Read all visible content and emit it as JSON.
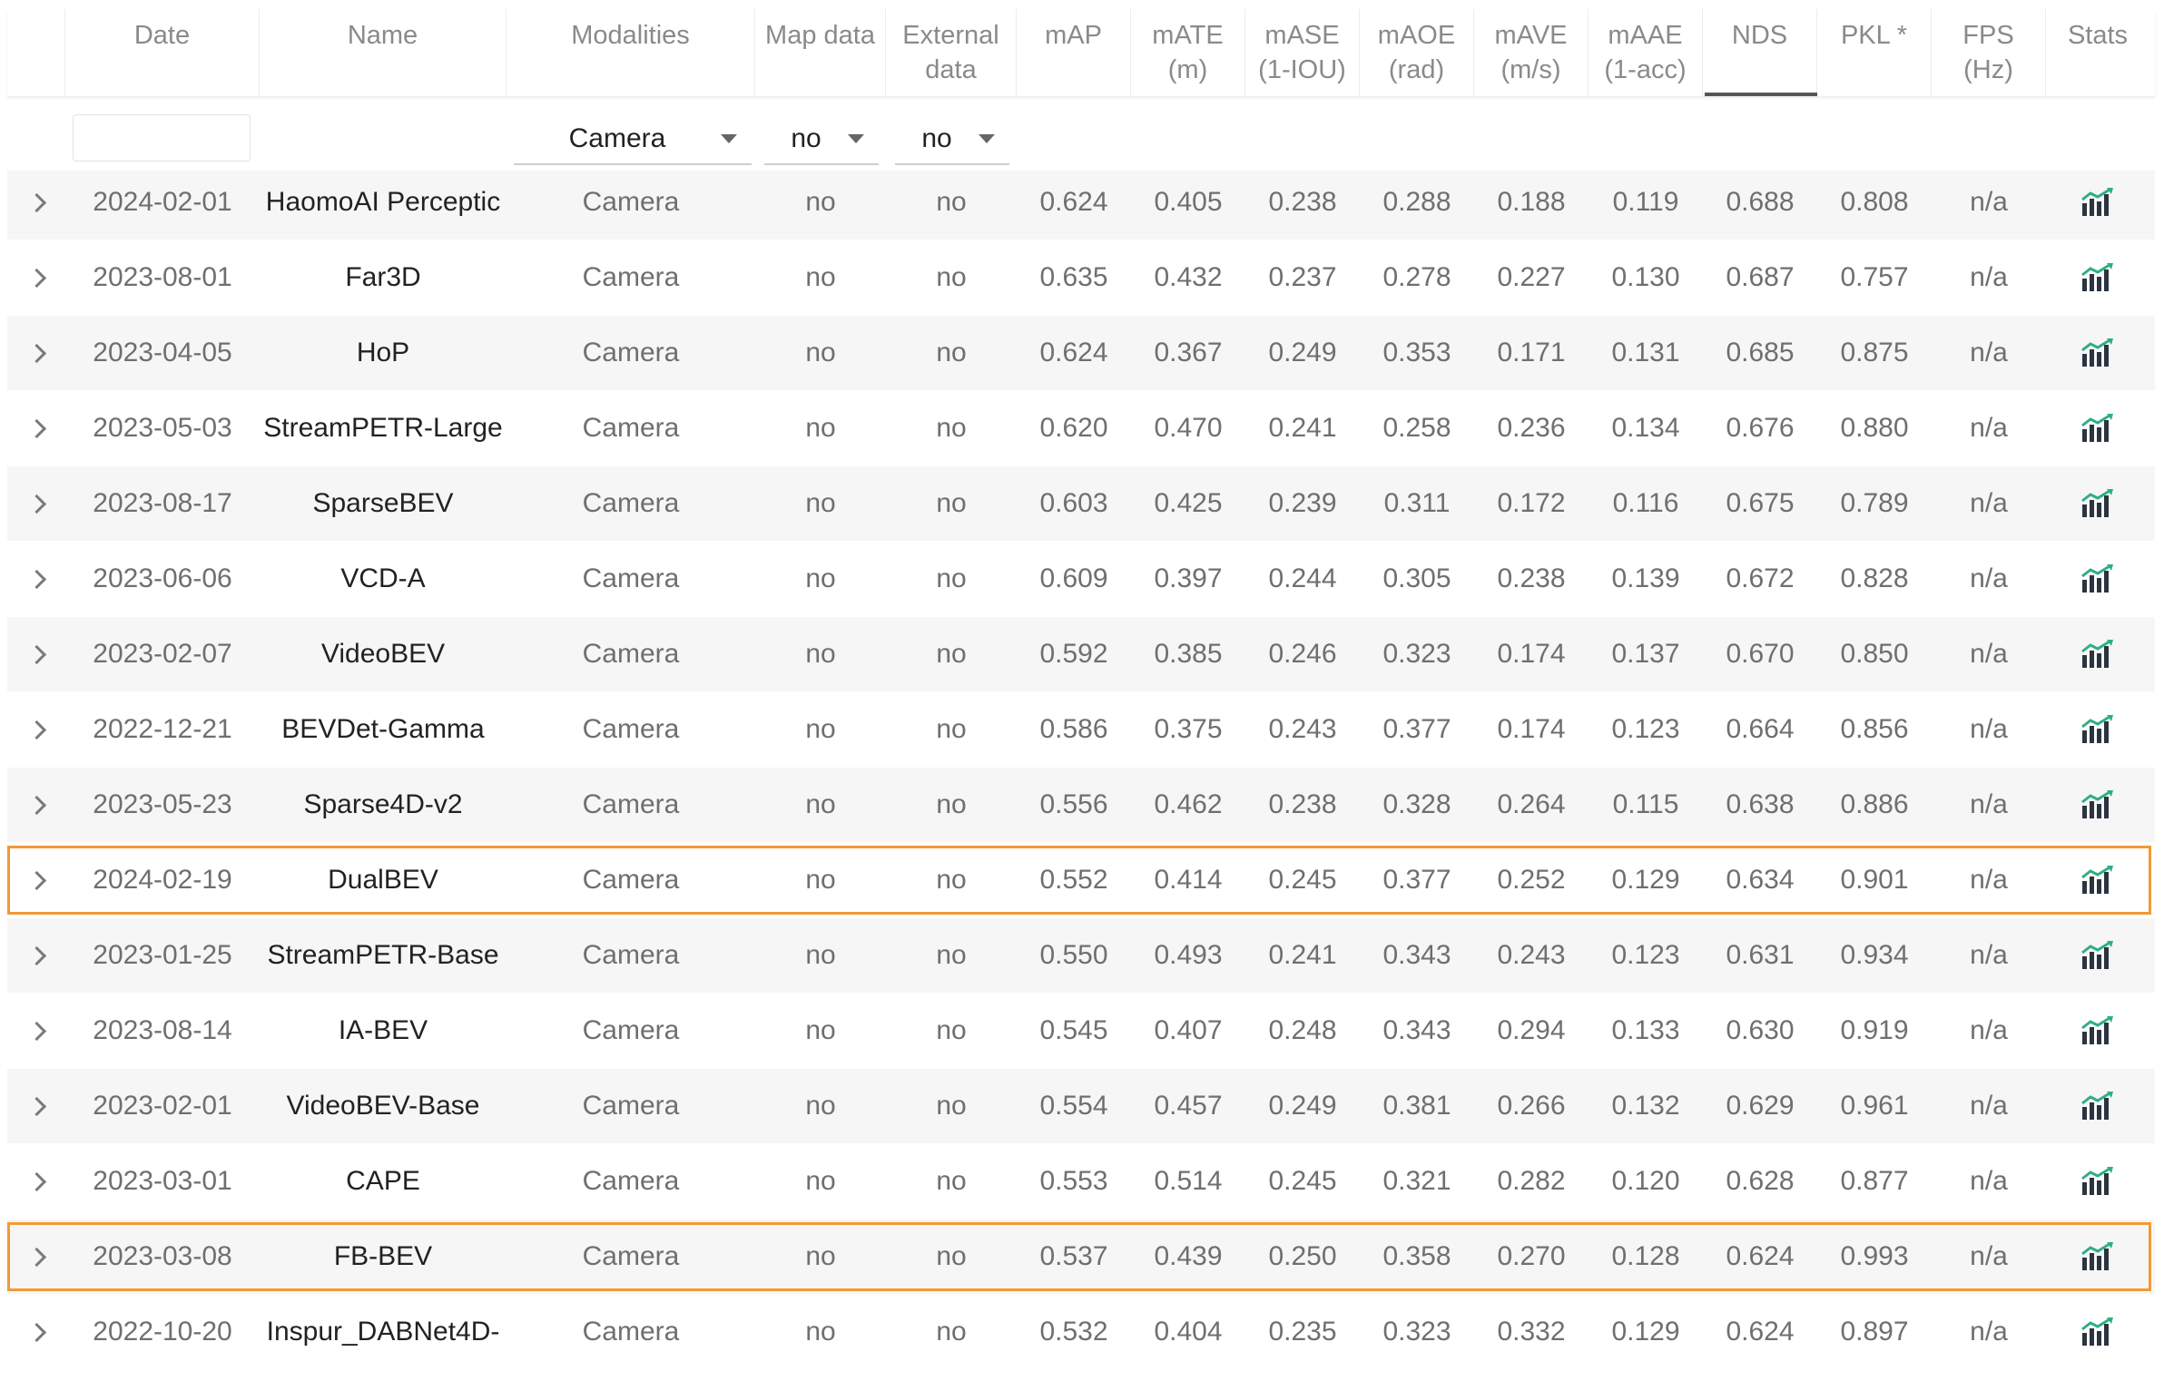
{
  "columns": [
    {
      "key": "expand",
      "label": ""
    },
    {
      "key": "date",
      "label": "Date"
    },
    {
      "key": "name",
      "label": "Name"
    },
    {
      "key": "modalities",
      "label": "Modalities"
    },
    {
      "key": "map",
      "label": "Map data"
    },
    {
      "key": "external",
      "label": "External data"
    },
    {
      "key": "map_score",
      "label": "mAP"
    },
    {
      "key": "mate",
      "label": "mATE (m)"
    },
    {
      "key": "mase",
      "label": "mASE (1-IOU)"
    },
    {
      "key": "maoe",
      "label": "mAOE (rad)"
    },
    {
      "key": "mave",
      "label": "mAVE (m/s)"
    },
    {
      "key": "maae",
      "label": "mAAE (1-acc)"
    },
    {
      "key": "nds",
      "label": "NDS"
    },
    {
      "key": "pkl",
      "label": "PKL *"
    },
    {
      "key": "fps",
      "label": "FPS (Hz)"
    },
    {
      "key": "stats",
      "label": "Stats"
    }
  ],
  "filters": {
    "search_value": "",
    "modalities_selected": "Camera",
    "map_selected": "no",
    "external_selected": "no"
  },
  "sorted_column": "NDS",
  "accent_color": "#f09a36",
  "rows": [
    {
      "date": "2024-02-01",
      "name": "HaomoAI Perceptic",
      "modalities": "Camera",
      "map": "no",
      "external": "no",
      "map_score": "0.624",
      "mate": "0.405",
      "mase": "0.238",
      "maoe": "0.288",
      "mave": "0.188",
      "maae": "0.119",
      "nds": "0.688",
      "pkl": "0.808",
      "fps": "n/a",
      "highlighted": false
    },
    {
      "date": "2023-08-01",
      "name": "Far3D",
      "modalities": "Camera",
      "map": "no",
      "external": "no",
      "map_score": "0.635",
      "mate": "0.432",
      "mase": "0.237",
      "maoe": "0.278",
      "mave": "0.227",
      "maae": "0.130",
      "nds": "0.687",
      "pkl": "0.757",
      "fps": "n/a",
      "highlighted": false
    },
    {
      "date": "2023-04-05",
      "name": "HoP",
      "modalities": "Camera",
      "map": "no",
      "external": "no",
      "map_score": "0.624",
      "mate": "0.367",
      "mase": "0.249",
      "maoe": "0.353",
      "mave": "0.171",
      "maae": "0.131",
      "nds": "0.685",
      "pkl": "0.875",
      "fps": "n/a",
      "highlighted": false
    },
    {
      "date": "2023-05-03",
      "name": "StreamPETR-Large",
      "modalities": "Camera",
      "map": "no",
      "external": "no",
      "map_score": "0.620",
      "mate": "0.470",
      "mase": "0.241",
      "maoe": "0.258",
      "mave": "0.236",
      "maae": "0.134",
      "nds": "0.676",
      "pkl": "0.880",
      "fps": "n/a",
      "highlighted": false
    },
    {
      "date": "2023-08-17",
      "name": "SparseBEV",
      "modalities": "Camera",
      "map": "no",
      "external": "no",
      "map_score": "0.603",
      "mate": "0.425",
      "mase": "0.239",
      "maoe": "0.311",
      "mave": "0.172",
      "maae": "0.116",
      "nds": "0.675",
      "pkl": "0.789",
      "fps": "n/a",
      "highlighted": false
    },
    {
      "date": "2023-06-06",
      "name": "VCD-A",
      "modalities": "Camera",
      "map": "no",
      "external": "no",
      "map_score": "0.609",
      "mate": "0.397",
      "mase": "0.244",
      "maoe": "0.305",
      "mave": "0.238",
      "maae": "0.139",
      "nds": "0.672",
      "pkl": "0.828",
      "fps": "n/a",
      "highlighted": false
    },
    {
      "date": "2023-02-07",
      "name": "VideoBEV",
      "modalities": "Camera",
      "map": "no",
      "external": "no",
      "map_score": "0.592",
      "mate": "0.385",
      "mase": "0.246",
      "maoe": "0.323",
      "mave": "0.174",
      "maae": "0.137",
      "nds": "0.670",
      "pkl": "0.850",
      "fps": "n/a",
      "highlighted": false
    },
    {
      "date": "2022-12-21",
      "name": "BEVDet-Gamma",
      "modalities": "Camera",
      "map": "no",
      "external": "no",
      "map_score": "0.586",
      "mate": "0.375",
      "mase": "0.243",
      "maoe": "0.377",
      "mave": "0.174",
      "maae": "0.123",
      "nds": "0.664",
      "pkl": "0.856",
      "fps": "n/a",
      "highlighted": false
    },
    {
      "date": "2023-05-23",
      "name": "Sparse4D-v2",
      "modalities": "Camera",
      "map": "no",
      "external": "no",
      "map_score": "0.556",
      "mate": "0.462",
      "mase": "0.238",
      "maoe": "0.328",
      "mave": "0.264",
      "maae": "0.115",
      "nds": "0.638",
      "pkl": "0.886",
      "fps": "n/a",
      "highlighted": false
    },
    {
      "date": "2024-02-19",
      "name": "DualBEV",
      "modalities": "Camera",
      "map": "no",
      "external": "no",
      "map_score": "0.552",
      "mate": "0.414",
      "mase": "0.245",
      "maoe": "0.377",
      "mave": "0.252",
      "maae": "0.129",
      "nds": "0.634",
      "pkl": "0.901",
      "fps": "n/a",
      "highlighted": true
    },
    {
      "date": "2023-01-25",
      "name": "StreamPETR-Base",
      "modalities": "Camera",
      "map": "no",
      "external": "no",
      "map_score": "0.550",
      "mate": "0.493",
      "mase": "0.241",
      "maoe": "0.343",
      "mave": "0.243",
      "maae": "0.123",
      "nds": "0.631",
      "pkl": "0.934",
      "fps": "n/a",
      "highlighted": false
    },
    {
      "date": "2023-08-14",
      "name": "IA-BEV",
      "modalities": "Camera",
      "map": "no",
      "external": "no",
      "map_score": "0.545",
      "mate": "0.407",
      "mase": "0.248",
      "maoe": "0.343",
      "mave": "0.294",
      "maae": "0.133",
      "nds": "0.630",
      "pkl": "0.919",
      "fps": "n/a",
      "highlighted": false
    },
    {
      "date": "2023-02-01",
      "name": "VideoBEV-Base",
      "modalities": "Camera",
      "map": "no",
      "external": "no",
      "map_score": "0.554",
      "mate": "0.457",
      "mase": "0.249",
      "maoe": "0.381",
      "mave": "0.266",
      "maae": "0.132",
      "nds": "0.629",
      "pkl": "0.961",
      "fps": "n/a",
      "highlighted": false
    },
    {
      "date": "2023-03-01",
      "name": "CAPE",
      "modalities": "Camera",
      "map": "no",
      "external": "no",
      "map_score": "0.553",
      "mate": "0.514",
      "mase": "0.245",
      "maoe": "0.321",
      "mave": "0.282",
      "maae": "0.120",
      "nds": "0.628",
      "pkl": "0.877",
      "fps": "n/a",
      "highlighted": false
    },
    {
      "date": "2023-03-08",
      "name": "FB-BEV",
      "modalities": "Camera",
      "map": "no",
      "external": "no",
      "map_score": "0.537",
      "mate": "0.439",
      "mase": "0.250",
      "maoe": "0.358",
      "mave": "0.270",
      "maae": "0.128",
      "nds": "0.624",
      "pkl": "0.993",
      "fps": "n/a",
      "highlighted": true
    },
    {
      "date": "2022-10-20",
      "name": "Inspur_DABNet4D-",
      "modalities": "Camera",
      "map": "no",
      "external": "no",
      "map_score": "0.532",
      "mate": "0.404",
      "mase": "0.235",
      "maoe": "0.323",
      "mave": "0.332",
      "maae": "0.129",
      "nds": "0.624",
      "pkl": "0.897",
      "fps": "n/a",
      "highlighted": false
    }
  ]
}
